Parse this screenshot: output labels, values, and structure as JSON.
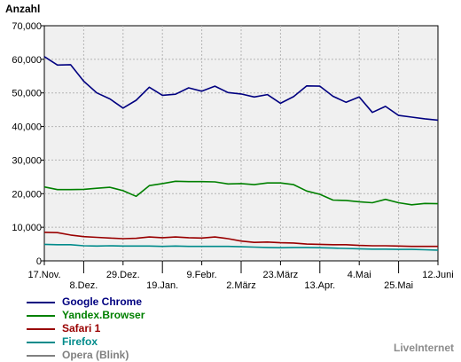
{
  "chart_data": {
    "type": "line",
    "ylabel": "Anzahl",
    "ylim": [
      0,
      70000
    ],
    "yticks": [
      0,
      10000,
      20000,
      30000,
      40000,
      50000,
      60000,
      70000
    ],
    "ytick_labels": [
      "0",
      "10,000",
      "20,000",
      "30,000",
      "40,000",
      "50,000",
      "60,000",
      "70,000"
    ],
    "xticks": [
      {
        "label": "17.Nov.",
        "week": 0,
        "row": 1
      },
      {
        "label": "8.Dez.",
        "week": 3,
        "row": 2
      },
      {
        "label": "29.Dez.",
        "week": 6,
        "row": 1
      },
      {
        "label": "19.Jan.",
        "week": 9,
        "row": 2
      },
      {
        "label": "9.Febr.",
        "week": 12,
        "row": 1
      },
      {
        "label": "2.März",
        "week": 15,
        "row": 2
      },
      {
        "label": "23.März",
        "week": 18,
        "row": 1
      },
      {
        "label": "13.Apr.",
        "week": 21,
        "row": 2
      },
      {
        "label": "4.Mai",
        "week": 24,
        "row": 1
      },
      {
        "label": "25.Mai",
        "week": 27,
        "row": 2
      },
      {
        "label": "12.Juni",
        "week": 30,
        "row": 1
      }
    ],
    "grid": true,
    "legend_position": "bottom-left",
    "series": [
      {
        "name": "Google Chrome",
        "color": "#000080",
        "values": [
          60800,
          58300,
          58400,
          53500,
          50000,
          48200,
          45500,
          47800,
          51700,
          49300,
          49600,
          51500,
          50500,
          52000,
          50100,
          49700,
          48800,
          49500,
          46900,
          48900,
          52100,
          52000,
          49000,
          47200,
          48800,
          44200,
          46000,
          43300,
          42800,
          42300,
          41900
        ]
      },
      {
        "name": "Yandex.Browser",
        "color": "#008000",
        "values": [
          22000,
          21200,
          21200,
          21300,
          21600,
          21900,
          20900,
          19200,
          22400,
          23000,
          23700,
          23600,
          23600,
          23500,
          22900,
          23000,
          22700,
          23200,
          23200,
          22700,
          20800,
          19800,
          18100,
          18000,
          17600,
          17300,
          18300,
          17300,
          16700,
          17100,
          17000
        ]
      },
      {
        "name": "Safari 1",
        "color": "#990000",
        "values": [
          8500,
          8400,
          7700,
          7200,
          7000,
          6800,
          6600,
          6700,
          7100,
          6900,
          7100,
          6900,
          6800,
          7100,
          6600,
          5900,
          5500,
          5600,
          5400,
          5300,
          5000,
          4900,
          4800,
          4800,
          4600,
          4500,
          4500,
          4400,
          4300,
          4300,
          4300
        ]
      },
      {
        "name": "Firefox",
        "color": "#008b8b",
        "values": [
          4900,
          4800,
          4800,
          4500,
          4400,
          4500,
          4400,
          4400,
          4400,
          4300,
          4400,
          4300,
          4300,
          4300,
          4300,
          4200,
          4100,
          4000,
          3900,
          4000,
          4000,
          3900,
          3800,
          3700,
          3600,
          3500,
          3500,
          3400,
          3400,
          3300,
          3200
        ]
      },
      {
        "name": "Opera (Blink)",
        "color": "#808080",
        "values": []
      }
    ]
  },
  "watermark": "LiveInternet"
}
